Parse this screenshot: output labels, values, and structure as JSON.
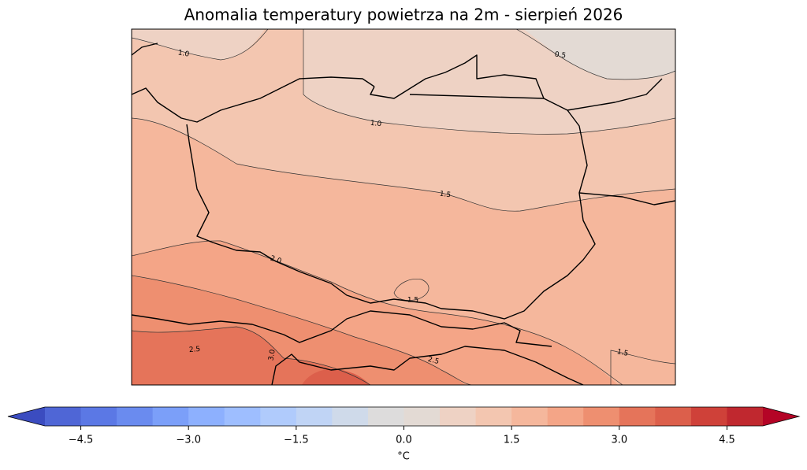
{
  "map": {
    "title": "Anomalia temperatury powietrza na 2m - sierpień 2026",
    "contour_labels": [
      {
        "value": 1.0,
        "label": "1.0"
      },
      {
        "value": 0.5,
        "label": "0.5"
      },
      {
        "value": 1.0,
        "label": "1.0"
      },
      {
        "value": 1.5,
        "label": "1.5"
      },
      {
        "value": 2.0,
        "label": "2.0"
      },
      {
        "value": 1.5,
        "label": "1.5"
      },
      {
        "value": 2.5,
        "label": "2.5"
      },
      {
        "value": 3.0,
        "label": "3.0"
      },
      {
        "value": 2.5,
        "label": "2.5"
      },
      {
        "value": 1.5,
        "label": "1.5"
      }
    ]
  },
  "colorbar": {
    "label": "°C",
    "lim": [
      -5,
      5
    ],
    "ticks": [
      {
        "value": -4.5,
        "label": "−4.5"
      },
      {
        "value": -3.0,
        "label": "−3.0"
      },
      {
        "value": -1.5,
        "label": "−1.5"
      },
      {
        "value": 0.0,
        "label": "0.0"
      },
      {
        "value": 1.5,
        "label": "1.5"
      },
      {
        "value": 3.0,
        "label": "3.0"
      },
      {
        "value": 4.5,
        "label": "4.5"
      }
    ],
    "colors": [
      "#4f66d6",
      "#5b78e5",
      "#6a8bef",
      "#7b9ff9",
      "#8db0fe",
      "#9ebeff",
      "#b0cbfc",
      "#c0d4f5",
      "#cfdaea",
      "#dddcdc",
      "#e3dad4",
      "#eed2c4",
      "#f3c6b0",
      "#f5b79c",
      "#f4a587",
      "#ee8f70",
      "#e5745a",
      "#dc5f4b",
      "#cf4139",
      "#c0282f"
    ],
    "under_color": "#3b4cc0",
    "over_color": "#b40426"
  }
}
